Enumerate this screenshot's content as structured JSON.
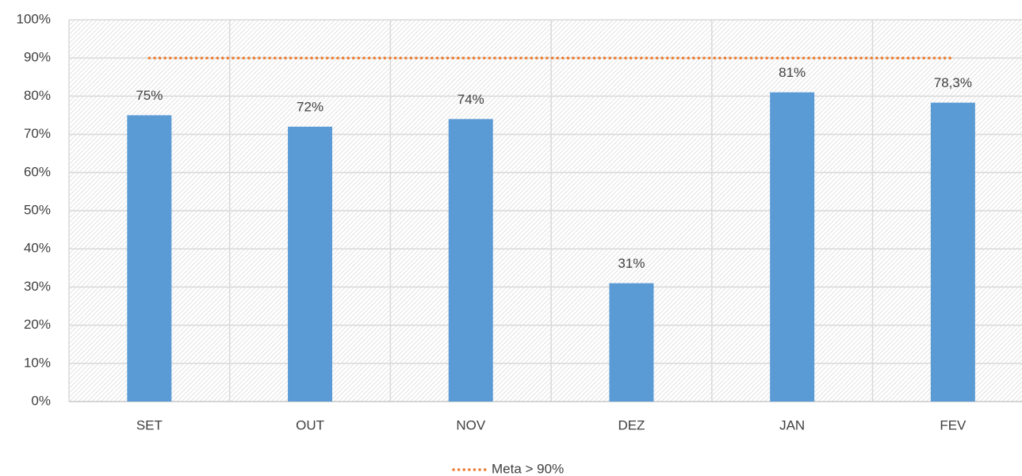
{
  "chart_data": {
    "type": "bar",
    "categories": [
      "SET",
      "OUT",
      "NOV",
      "DEZ",
      "JAN",
      "FEV"
    ],
    "values": [
      75,
      72,
      74,
      31,
      81,
      78.3
    ],
    "value_labels": [
      "75%",
      "72%",
      "74%",
      "31%",
      "81%",
      "78,3%"
    ],
    "color": "#5b9bd5",
    "series": [
      {
        "name": "Meta > 90%",
        "type": "line",
        "color": "#ed7d31",
        "values": [
          90,
          90,
          90,
          90,
          90,
          90
        ]
      }
    ],
    "ylim": [
      0,
      100
    ],
    "yticks": [
      {
        "value": 0,
        "label": "0%"
      },
      {
        "value": 10,
        "label": "10%"
      },
      {
        "value": 20,
        "label": "20%"
      },
      {
        "value": 30,
        "label": "30%"
      },
      {
        "value": 40,
        "label": "40%"
      },
      {
        "value": 50,
        "label": "50%"
      },
      {
        "value": 60,
        "label": "60%"
      },
      {
        "value": 70,
        "label": "70%"
      },
      {
        "value": 80,
        "label": "80%"
      },
      {
        "value": 90,
        "label": "90%"
      },
      {
        "value": 100,
        "label": "100%"
      }
    ],
    "grid": true,
    "legend": "bottom"
  }
}
